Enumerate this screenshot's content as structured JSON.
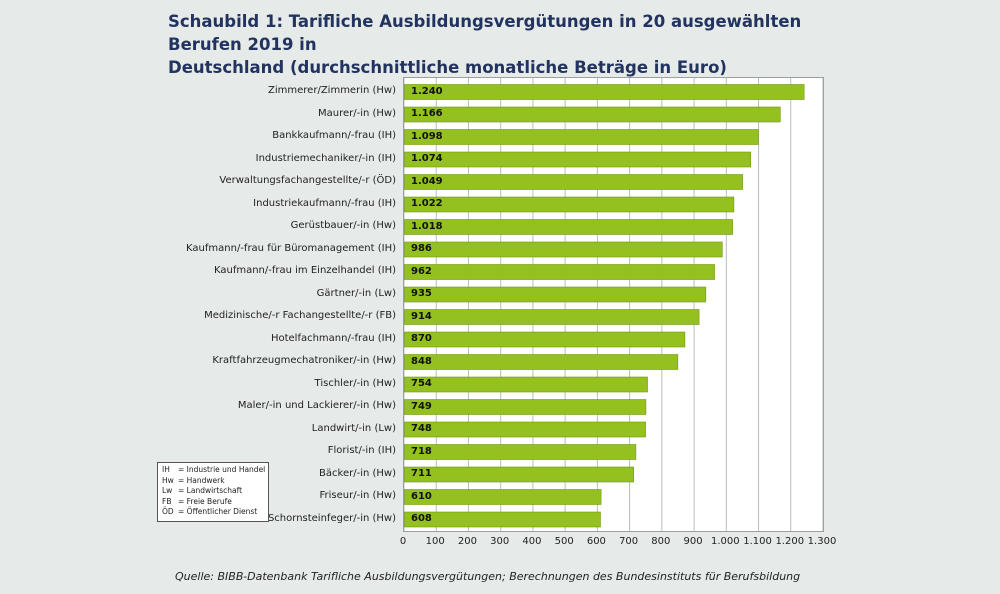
{
  "title_line1": "Schaubild 1: Tarifliche Ausbildungsvergütungen in 20 ausgewählten Berufen 2019 in",
  "title_line2": "Deutschland (durchschnittliche monatliche Beträge in Euro)",
  "source": "Quelle: BIBB-Datenbank Tarifliche Ausbildungsvergütungen; Berechnungen des Bundesinstituts für Berufsbildung",
  "colors": {
    "bar": "#94c11f",
    "bar_edge": "#6f9a10",
    "grid": "#b7bdbb",
    "title": "#22335f"
  },
  "legend": [
    {
      "abbr": "IH",
      "text": "= Industrie und Handel"
    },
    {
      "abbr": "Hw",
      "text": "= Handwerk"
    },
    {
      "abbr": "Lw",
      "text": "= Landwirtschaft"
    },
    {
      "abbr": "FB",
      "text": "= Freie Berufe"
    },
    {
      "abbr": "ÖD",
      "text": "= Öffentlicher Dienst"
    }
  ],
  "chart_data": {
    "type": "bar",
    "orientation": "horizontal",
    "grid": true,
    "xlim": [
      0,
      1300
    ],
    "ticks": [
      0,
      100,
      200,
      300,
      400,
      500,
      600,
      700,
      800,
      900,
      1000,
      1100,
      1200,
      1300
    ],
    "tick_labels": [
      "0",
      "100",
      "200",
      "300",
      "400",
      "500",
      "600",
      "700",
      "800",
      "900",
      "1.000",
      "1.100",
      "1.200",
      "1.300"
    ],
    "categories": [
      "Zimmerer/Zimmerin (Hw)",
      "Maurer/-in (Hw)",
      "Bankkaufmann/-frau (IH)",
      "Industriemechaniker/-in (IH)",
      "Verwaltungsfachangestellte/-r (ÖD)",
      "Industriekaufmann/-frau (IH)",
      "Gerüstbauer/-in (Hw)",
      "Kaufmann/-frau für Büromanagement (IH)",
      "Kaufmann/-frau im Einzelhandel (IH)",
      "Gärtner/-in (Lw)",
      "Medizinische/-r Fachangestellte/-r (FB)",
      "Hotelfachmann/-frau (IH)",
      "Kraftfahrzeugmechatroniker/-in (Hw)",
      "Tischler/-in (Hw)",
      "Maler/-in und Lackierer/-in (Hw)",
      "Landwirt/-in (Lw)",
      "Florist/-in (IH)",
      "Bäcker/-in (Hw)",
      "Friseur/-in (Hw)",
      "Schornsteinfeger/-in (Hw)"
    ],
    "values": [
      1240,
      1166,
      1098,
      1074,
      1049,
      1022,
      1018,
      986,
      962,
      935,
      914,
      870,
      848,
      754,
      749,
      748,
      718,
      711,
      610,
      608
    ],
    "value_labels": [
      "1.240",
      "1.166",
      "1.098",
      "1.074",
      "1.049",
      "1.022",
      "1.018",
      "986",
      "962",
      "935",
      "914",
      "870",
      "848",
      "754",
      "749",
      "748",
      "718",
      "711",
      "610",
      "608"
    ]
  }
}
